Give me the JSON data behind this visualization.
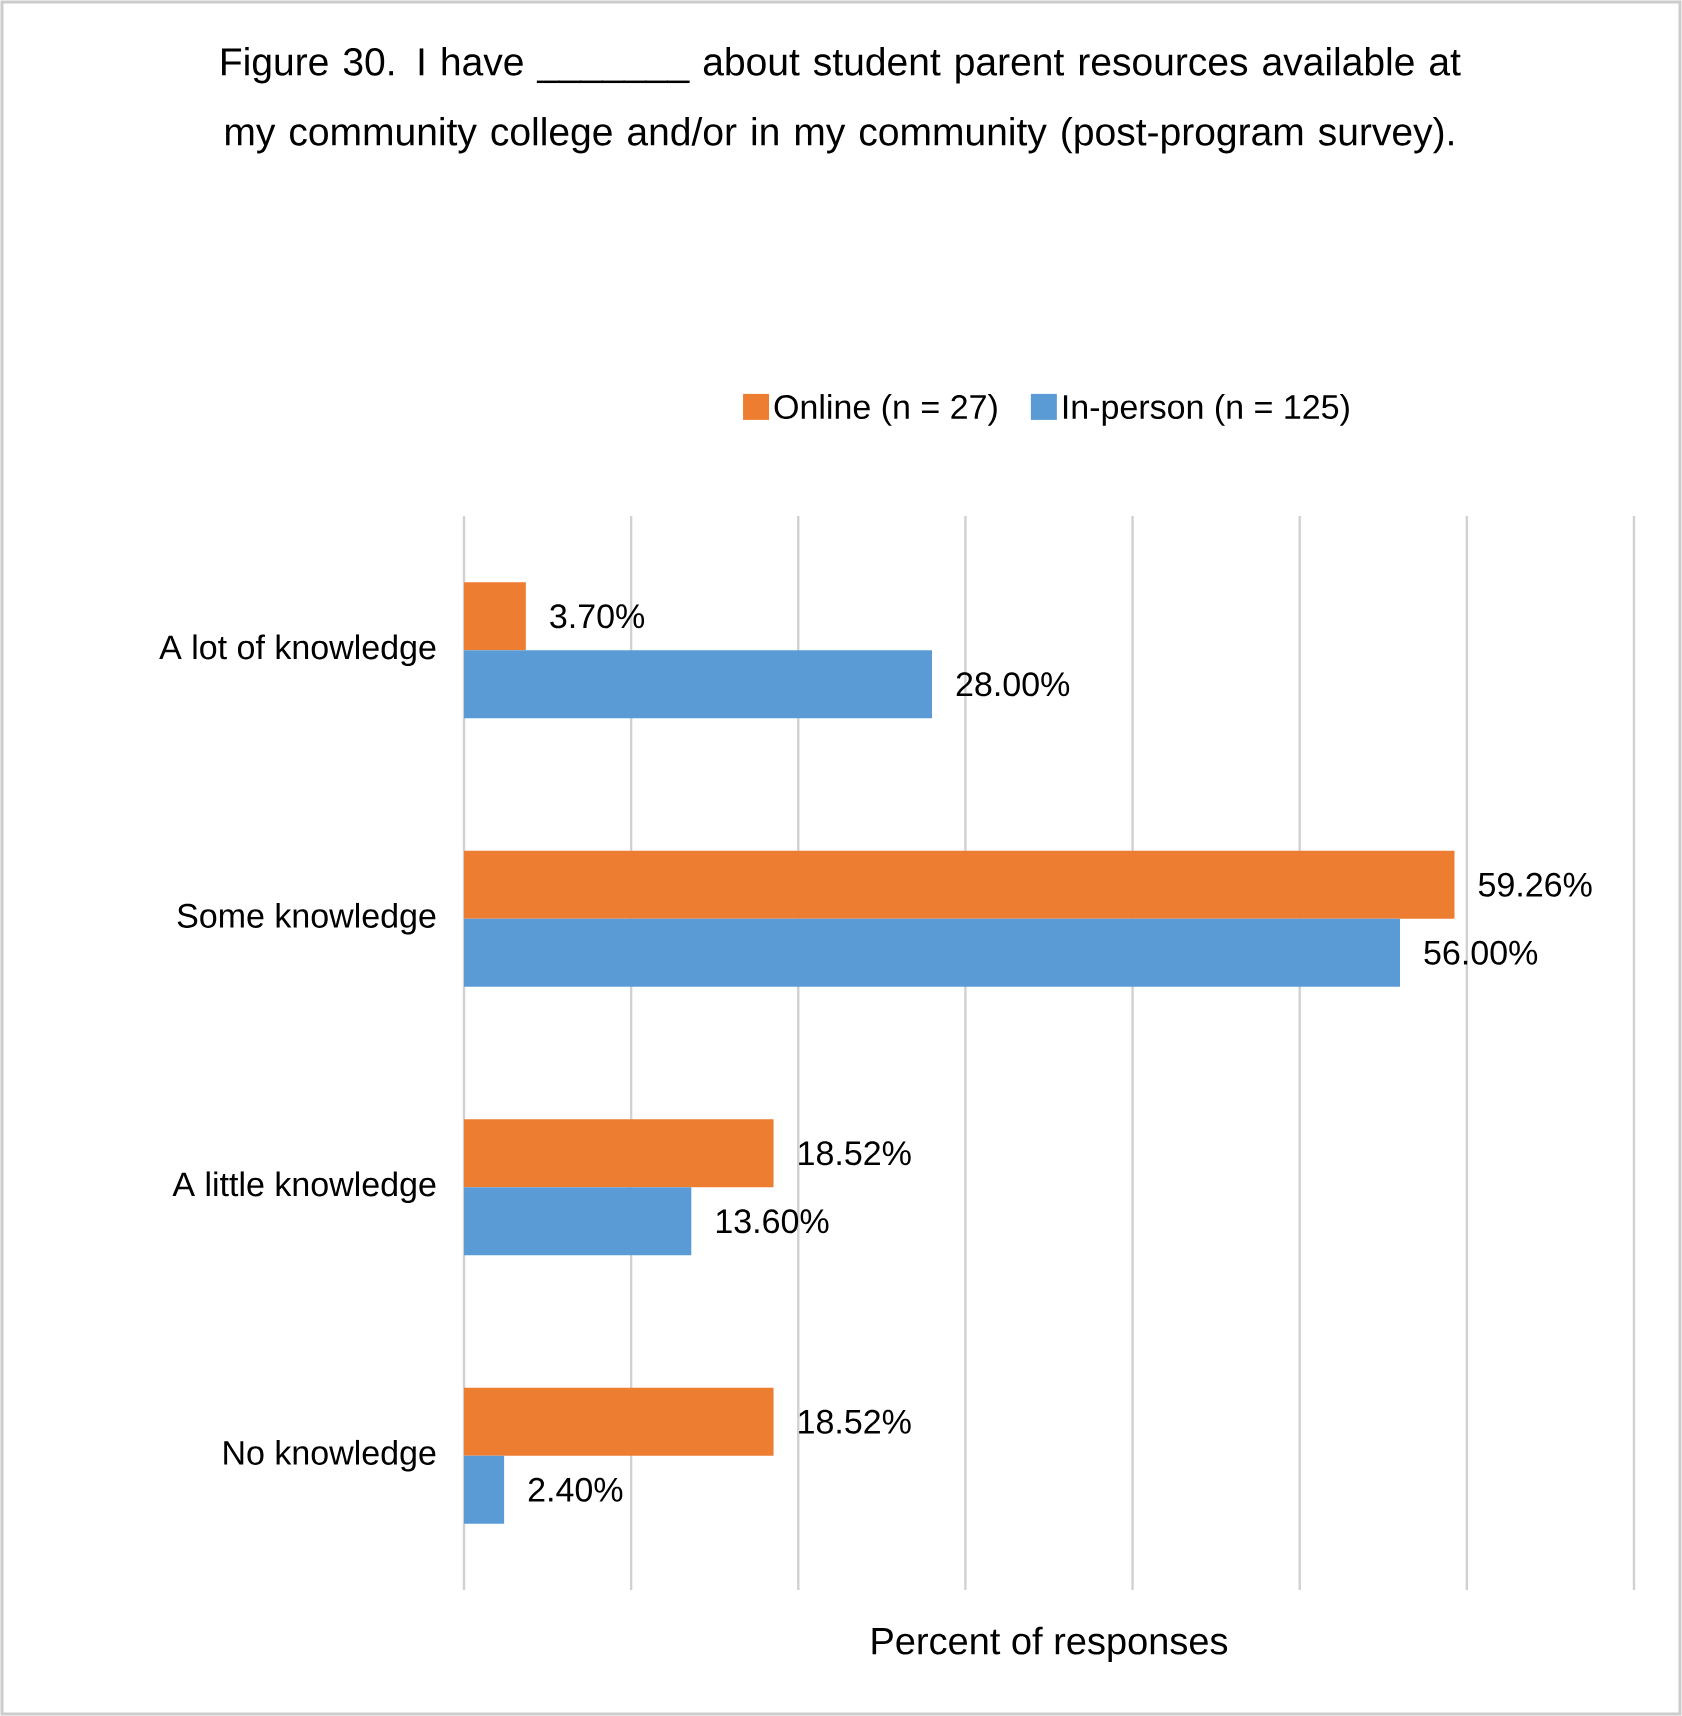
{
  "chart_data": {
    "type": "bar",
    "orientation": "horizontal",
    "title": "Figure 30. I have _______ about student parent resources available at my community college and/or in my community (post-program survey).",
    "xlabel": "Percent of responses",
    "categories": [
      "A lot of knowledge",
      "Some knowledge",
      "A little knowledge",
      "No knowledge"
    ],
    "series": [
      {
        "name": "Online (n = 27)",
        "color": "#ed7d31",
        "values": [
          3.7,
          59.26,
          18.52,
          18.52
        ],
        "value_labels": [
          "3.70%",
          "59.26%",
          "18.52%",
          "18.52%"
        ]
      },
      {
        "name": "In-person (n = 125)",
        "color": "#5b9bd5",
        "values": [
          28.0,
          56.0,
          13.6,
          2.4
        ],
        "value_labels": [
          "28.00%",
          "56.00%",
          "13.60%",
          "2.40%"
        ]
      }
    ],
    "xlim": [
      0,
      70
    ],
    "xticks": [
      {
        "value": 0,
        "label": null
      },
      {
        "value": 10,
        "label": null
      },
      {
        "value": 20,
        "label": null
      },
      {
        "value": 30,
        "label": null
      },
      {
        "value": 40,
        "label": null
      },
      {
        "value": 50,
        "label": null
      },
      {
        "value": 60,
        "label": null
      },
      {
        "value": 70,
        "label": null
      }
    ],
    "tick_labels": "y",
    "grid": "x",
    "legend": "top"
  }
}
